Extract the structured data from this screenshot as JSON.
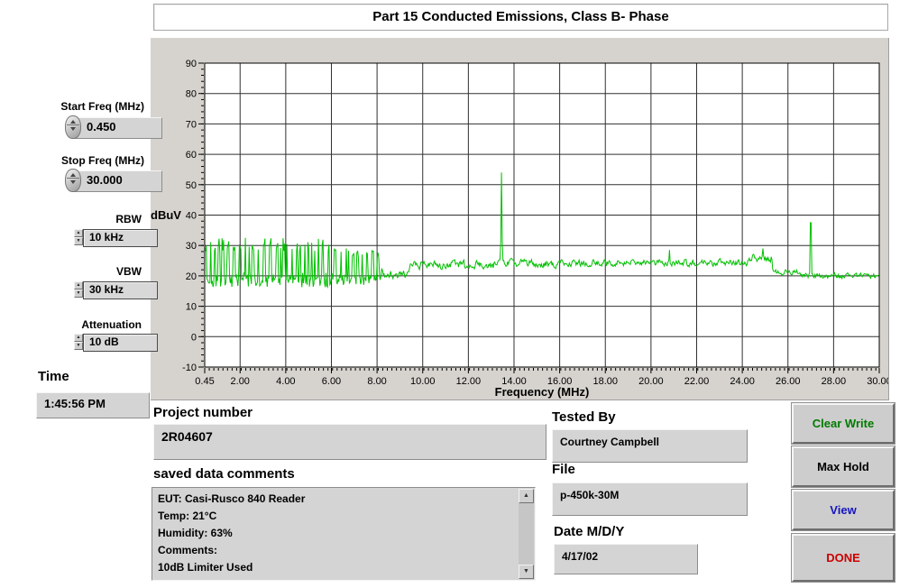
{
  "window": {
    "title": "Part 15 Conducted Emissions, Class B- Phase"
  },
  "controls": {
    "start_freq": {
      "label": "Start Freq (MHz)",
      "value": "0.450"
    },
    "stop_freq": {
      "label": "Stop Freq (MHz)",
      "value": "30.000"
    },
    "rbw": {
      "label": "RBW",
      "value": "10 kHz"
    },
    "vbw": {
      "label": "VBW",
      "value": "30 kHz"
    },
    "attenuation": {
      "label": "Attenuation",
      "value": "10 dB"
    },
    "time": {
      "label": "Time",
      "value": "1:45:56 PM"
    }
  },
  "fields": {
    "project_number": {
      "label": "Project number",
      "value": "2R04607"
    },
    "saved_data_comments": {
      "label": "saved data comments",
      "value": "EUT: Casi-Rusco 840 Reader\nTemp: 21°C\nHumidity: 63%\nComments:\n10dB Limiter Used"
    },
    "tested_by": {
      "label": "Tested By",
      "value": "Courtney Campbell"
    },
    "file": {
      "label": "File",
      "value": "p-450k-30M"
    },
    "date": {
      "label": "Date M/D/Y",
      "value": "4/17/02"
    }
  },
  "buttons": [
    {
      "label": "Clear Write",
      "color": "#007a00"
    },
    {
      "label": "Max Hold",
      "color": "#000000"
    },
    {
      "label": "View",
      "color": "#1515c0"
    },
    {
      "label": "DONE",
      "color": "#cc0000"
    }
  ],
  "icons": {
    "scroll_up": "▲",
    "scroll_down": "▼"
  },
  "chart_data": {
    "type": "line",
    "title": "Part 15 Conducted Emissions, Class B- Phase",
    "xlabel": "Frequency (MHz)",
    "ylabel": "dBuV",
    "xlim": [
      0.45,
      30
    ],
    "ylim": [
      -10,
      90
    ],
    "grid": true,
    "legend": "none",
    "trace_color": "#00c000",
    "grid_color": "#303030",
    "x_ticks": [
      {
        "v": 0.45,
        "label": "0.45"
      },
      {
        "v": 2,
        "label": "2.00"
      },
      {
        "v": 4,
        "label": "4.00"
      },
      {
        "v": 6,
        "label": "6.00"
      },
      {
        "v": 8,
        "label": "8.00"
      },
      {
        "v": 10,
        "label": "10.00"
      },
      {
        "v": 12,
        "label": "12.00"
      },
      {
        "v": 14,
        "label": "14.00"
      },
      {
        "v": 16,
        "label": "16.00"
      },
      {
        "v": 18,
        "label": "18.00"
      },
      {
        "v": 20,
        "label": "20.00"
      },
      {
        "v": 22,
        "label": "22.00"
      },
      {
        "v": 24,
        "label": "24.00"
      },
      {
        "v": 26,
        "label": "26.00"
      },
      {
        "v": 28,
        "label": "28.00"
      },
      {
        "v": 30,
        "label": "30.00"
      }
    ],
    "y_ticks": [
      {
        "v": 90,
        "label": "90"
      },
      {
        "v": 80,
        "label": "80"
      },
      {
        "v": 70,
        "label": "70"
      },
      {
        "v": 60,
        "label": "60"
      },
      {
        "v": 50,
        "label": "50"
      },
      {
        "v": 40,
        "label": "40"
      },
      {
        "v": 30,
        "label": "30"
      },
      {
        "v": 20,
        "label": "20"
      },
      {
        "v": 10,
        "label": "10"
      },
      {
        "v": 0,
        "label": "0"
      },
      {
        "v": -10,
        "label": "-10"
      }
    ],
    "segments": [
      {
        "from": 0.45,
        "to": 6.3,
        "mode": "comb",
        "base": 24.5,
        "noise": 7.5
      },
      {
        "from": 6.3,
        "to": 8.2,
        "mode": "comb",
        "base": 23.0,
        "noise": 5.5
      },
      {
        "from": 8.2,
        "to": 9.3,
        "base": 20.5,
        "noise": 2.0
      },
      {
        "from": 9.3,
        "to": 13.3,
        "base": 23.5,
        "noise": 2.2
      },
      {
        "from": 13.3,
        "to": 16.0,
        "base": 24.0,
        "noise": 2.0
      },
      {
        "from": 16.0,
        "to": 24.2,
        "base": 24.3,
        "noise": 1.8
      },
      {
        "from": 24.2,
        "to": 25.3,
        "base": 25.8,
        "noise": 2.0
      },
      {
        "from": 25.3,
        "to": 26.6,
        "base": 21.0,
        "noise": 1.6
      },
      {
        "from": 26.6,
        "to": 30.0,
        "base": 20.0,
        "noise": 1.4
      }
    ],
    "peaks": [
      {
        "freq": 13.45,
        "dbuv": 54
      },
      {
        "freq": 27.0,
        "dbuv": 37.5
      },
      {
        "freq": 20.8,
        "dbuv": 28.5
      },
      {
        "freq": 24.9,
        "dbuv": 29
      }
    ]
  }
}
